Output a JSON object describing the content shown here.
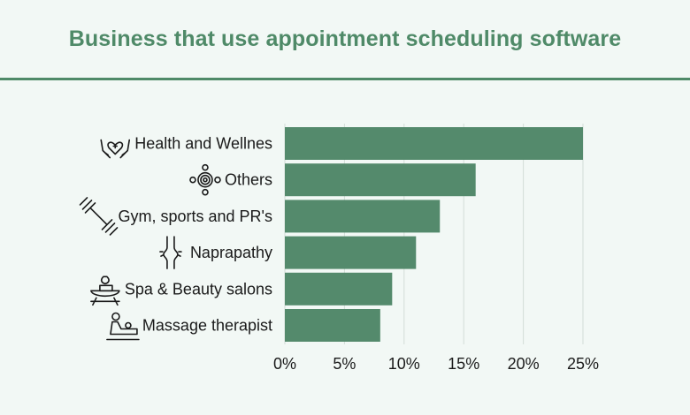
{
  "chart_data": {
    "type": "bar",
    "orientation": "horizontal",
    "title": "Business that use appointment scheduling software",
    "categories": [
      "Health and Wellnes",
      "Others",
      "Gym, sports and PR's",
      "Naprapathy",
      "Spa & Beauty salons",
      "Massage therapist"
    ],
    "icons": [
      "heart-hands-icon",
      "target-circles-icon",
      "dumbbell-icon",
      "knee-joint-icon",
      "spa-bowl-icon",
      "massage-icon"
    ],
    "values": [
      25,
      16,
      13,
      11,
      9,
      8
    ],
    "xticks": [
      "0%",
      "5%",
      "10%",
      "15%",
      "20%",
      "25%"
    ],
    "xlim": [
      0,
      25
    ],
    "grid": true,
    "bar_color": "#548a6c",
    "grid_color": "#d3ddd8"
  },
  "colors": {
    "title": "#4f8a68",
    "rule": "#4f8a68",
    "background": "#f2f8f5"
  }
}
